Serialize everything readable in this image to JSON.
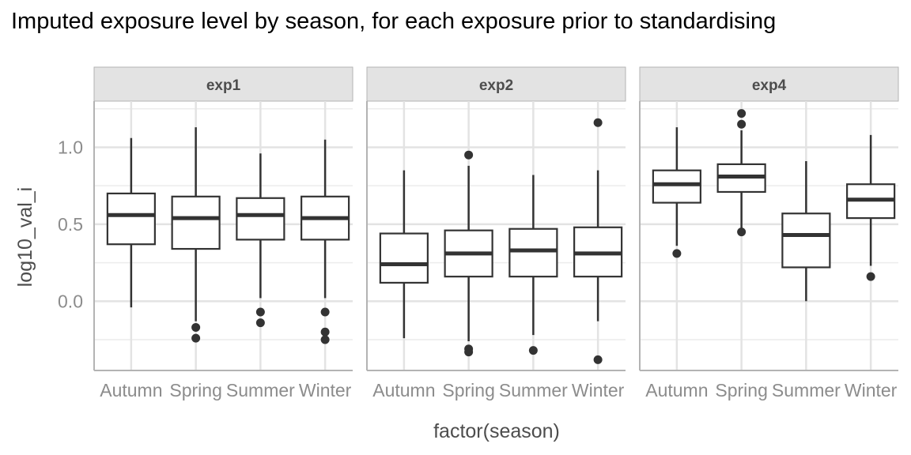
{
  "chart_data": {
    "type": "boxplot",
    "title": "Imputed exposure level by season, for each exposure prior to standardising",
    "xlabel": "factor(season)",
    "ylabel": "log10_val_i",
    "ylim": [
      -0.45,
      1.3
    ],
    "y_ticks": [
      0.0,
      0.5,
      1.0
    ],
    "y_tick_labels": [
      "0.0",
      "0.5",
      "1.0"
    ],
    "categories": [
      "Autumn",
      "Spring",
      "Summer",
      "Winter"
    ],
    "grid": true,
    "panels": [
      {
        "name": "exp1",
        "boxes": [
          {
            "category": "Autumn",
            "whisker_low": -0.04,
            "q1": 0.37,
            "median": 0.56,
            "q3": 0.7,
            "whisker_high": 1.06,
            "outliers": []
          },
          {
            "category": "Spring",
            "whisker_low": -0.13,
            "q1": 0.34,
            "median": 0.54,
            "q3": 0.68,
            "whisker_high": 1.13,
            "outliers": [
              -0.17,
              -0.24
            ]
          },
          {
            "category": "Summer",
            "whisker_low": 0.02,
            "q1": 0.4,
            "median": 0.56,
            "q3": 0.67,
            "whisker_high": 0.96,
            "outliers": [
              -0.07,
              -0.14
            ]
          },
          {
            "category": "Winter",
            "whisker_low": 0.02,
            "q1": 0.4,
            "median": 0.54,
            "q3": 0.68,
            "whisker_high": 1.05,
            "outliers": [
              -0.07,
              -0.2,
              -0.25
            ]
          }
        ]
      },
      {
        "name": "exp2",
        "boxes": [
          {
            "category": "Autumn",
            "whisker_low": -0.24,
            "q1": 0.12,
            "median": 0.24,
            "q3": 0.44,
            "whisker_high": 0.85,
            "outliers": []
          },
          {
            "category": "Spring",
            "whisker_low": -0.26,
            "q1": 0.16,
            "median": 0.31,
            "q3": 0.46,
            "whisker_high": 0.88,
            "outliers": [
              0.95,
              -0.31,
              -0.33
            ]
          },
          {
            "category": "Summer",
            "whisker_low": -0.22,
            "q1": 0.16,
            "median": 0.33,
            "q3": 0.47,
            "whisker_high": 0.82,
            "outliers": [
              -0.32
            ]
          },
          {
            "category": "Winter",
            "whisker_low": -0.13,
            "q1": 0.16,
            "median": 0.31,
            "q3": 0.48,
            "whisker_high": 0.85,
            "outliers": [
              1.16,
              -0.38
            ]
          }
        ]
      },
      {
        "name": "exp4",
        "boxes": [
          {
            "category": "Autumn",
            "whisker_low": 0.36,
            "q1": 0.64,
            "median": 0.76,
            "q3": 0.85,
            "whisker_high": 1.13,
            "outliers": [
              0.31
            ]
          },
          {
            "category": "Spring",
            "whisker_low": 0.47,
            "q1": 0.71,
            "median": 0.81,
            "q3": 0.89,
            "whisker_high": 1.11,
            "outliers": [
              1.22,
              1.15,
              0.45
            ]
          },
          {
            "category": "Summer",
            "whisker_low": 0.0,
            "q1": 0.22,
            "median": 0.43,
            "q3": 0.57,
            "whisker_high": 0.91,
            "outliers": []
          },
          {
            "category": "Winter",
            "whisker_low": 0.23,
            "q1": 0.54,
            "median": 0.66,
            "q3": 0.76,
            "whisker_high": 1.08,
            "outliers": [
              0.16
            ]
          }
        ]
      }
    ]
  }
}
